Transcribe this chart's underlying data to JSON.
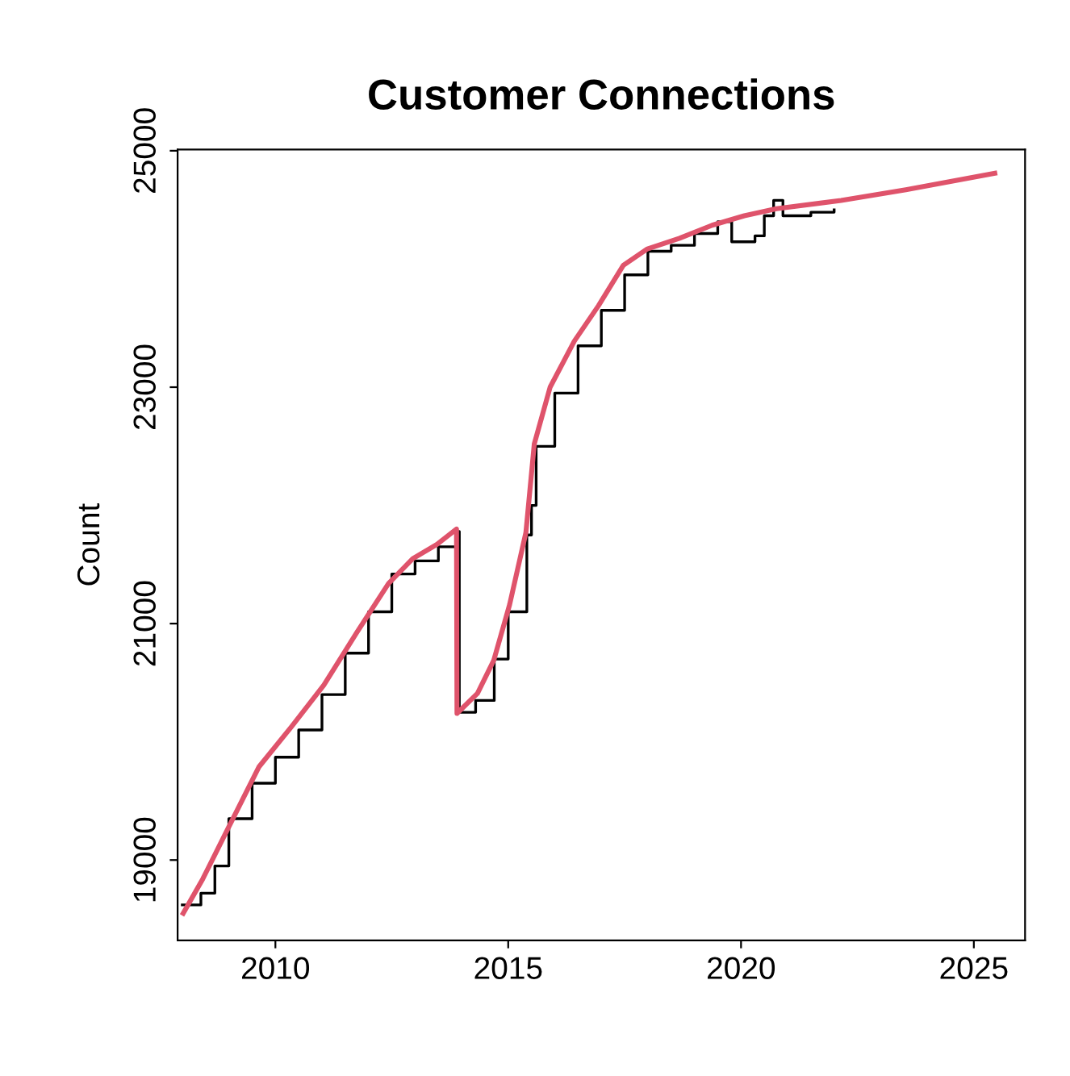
{
  "chart_data": {
    "type": "line",
    "title": "Customer Connections",
    "ylabel": "Count",
    "xlim": [
      2007.9,
      2026.1
    ],
    "xticks": [
      2010,
      2015,
      2020,
      2025
    ],
    "ylim": [
      18320,
      25010
    ],
    "yticks": [
      19000,
      21000,
      23000,
      25000
    ],
    "grid": false,
    "legend": false,
    "marker": "none",
    "line_style": "solid",
    "series": [
      {
        "type": "step",
        "color": "#000000",
        "x": [
          2008.0,
          2008.4,
          2008.7,
          2009.0,
          2009.5,
          2010.0,
          2010.5,
          2011.0,
          2011.5,
          2012.0,
          2012.5,
          2013.0,
          2013.5,
          2013.9,
          2013.95,
          2014.3,
          2014.7,
          2015.0,
          2015.4,
          2015.5,
          2015.6,
          2016.0,
          2016.5,
          2017.0,
          2017.5,
          2018.0,
          2018.5,
          2019.0,
          2019.5,
          2019.8,
          2020.3,
          2020.5,
          2020.7,
          2020.9,
          2021.5,
          2022.0
        ],
        "values": [
          18620,
          18720,
          18950,
          19350,
          19650,
          19870,
          20100,
          20400,
          20750,
          21100,
          21420,
          21530,
          21650,
          21780,
          20250,
          20350,
          20700,
          21100,
          21750,
          22000,
          22500,
          22950,
          23350,
          23650,
          23950,
          24150,
          24200,
          24300,
          24400,
          24230,
          24280,
          24450,
          24580,
          24450,
          24480,
          24500
        ]
      },
      {
        "color": "#df536b",
        "x": [
          2008.02,
          2008.44,
          2008.96,
          2009.65,
          2010.35,
          2011.04,
          2011.74,
          2012.43,
          2012.95,
          2013.47,
          2013.89,
          2013.9,
          2014.34,
          2014.69,
          2015.03,
          2015.38,
          2015.56,
          2015.9,
          2016.42,
          2016.94,
          2017.47,
          2017.99,
          2018.68,
          2019.38,
          2020.07,
          2020.76,
          2022.15,
          2023.54,
          2025.45
        ],
        "values": [
          18550,
          18840,
          19250,
          19790,
          20130,
          20480,
          20920,
          21340,
          21550,
          21670,
          21800,
          20240,
          20410,
          20690,
          21160,
          21770,
          22520,
          23000,
          23390,
          23690,
          24030,
          24170,
          24260,
          24370,
          24450,
          24510,
          24580,
          24670,
          24810
        ]
      }
    ]
  }
}
